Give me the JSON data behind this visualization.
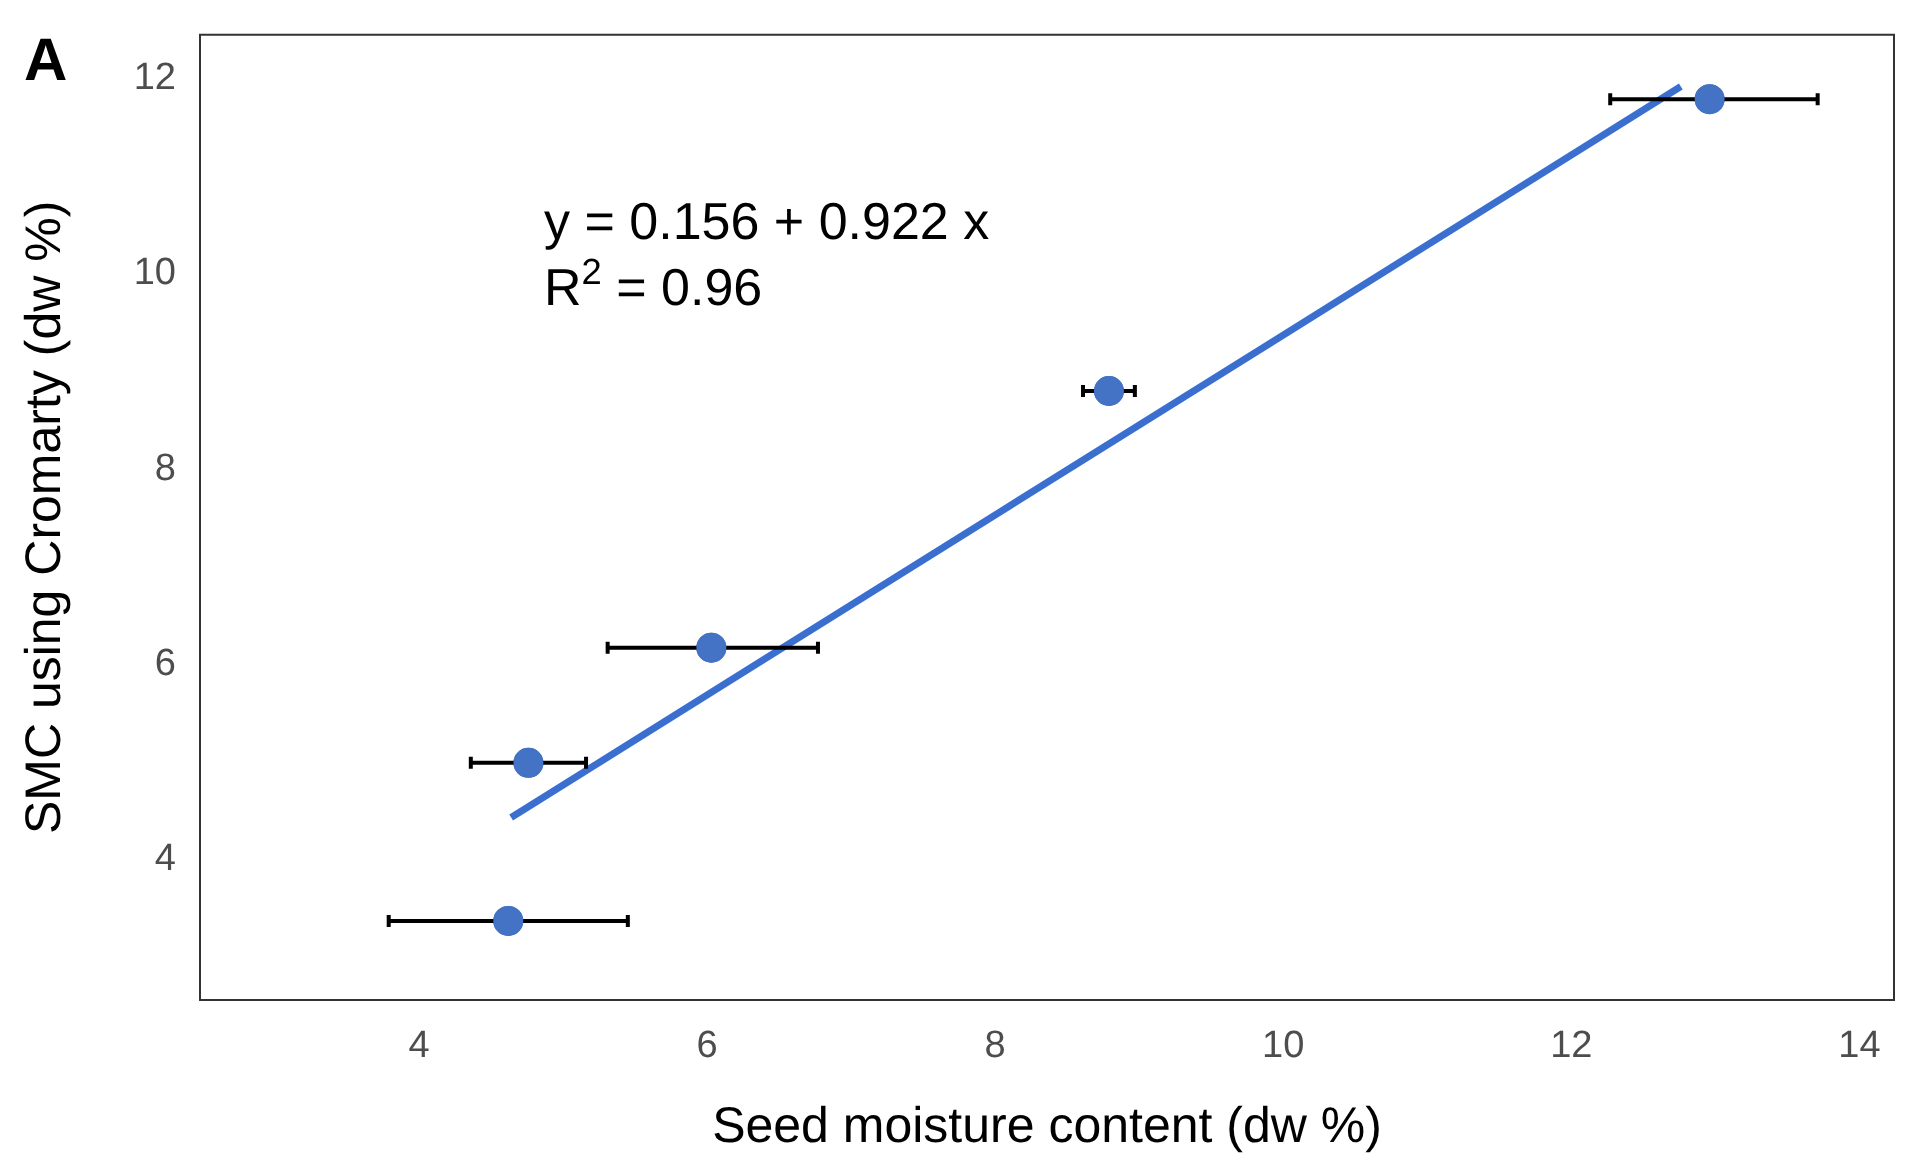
{
  "chart_data": {
    "type": "scatter",
    "xlabel": "Seed moisture content (dw %)",
    "ylabel": "SMC using Cromarty (dw %)",
    "annotations": [
      "A",
      "y = 0.156 + 0.922 x",
      "R$^{2}$ = 0.96"
    ],
    "xlim": [
      2.48,
      14.24
    ],
    "ylim": [
      2.56,
      12.45
    ],
    "xticks": [
      4,
      6,
      8,
      10,
      12,
      14
    ],
    "yticks": [
      4,
      6,
      8,
      10,
      12
    ],
    "grid": false,
    "marker": "circle",
    "series": [
      {
        "type": "scatter",
        "color": "#4472c4",
        "x": [
          4.62,
          4.76,
          6.03,
          8.79,
          12.96
        ],
        "values": [
          3.37,
          4.99,
          6.17,
          8.8,
          11.79
        ],
        "xerrors": [
          [
            3.79,
            5.45
          ],
          [
            4.36,
            5.16
          ],
          [
            5.31,
            6.77
          ],
          [
            8.61,
            8.97
          ],
          [
            12.27,
            13.71
          ]
        ]
      },
      {
        "type": "line",
        "color": "#3a6fd0",
        "x": [
          4.64,
          12.76
        ],
        "values": [
          4.43,
          11.92
        ],
        "marker": "none"
      }
    ]
  }
}
